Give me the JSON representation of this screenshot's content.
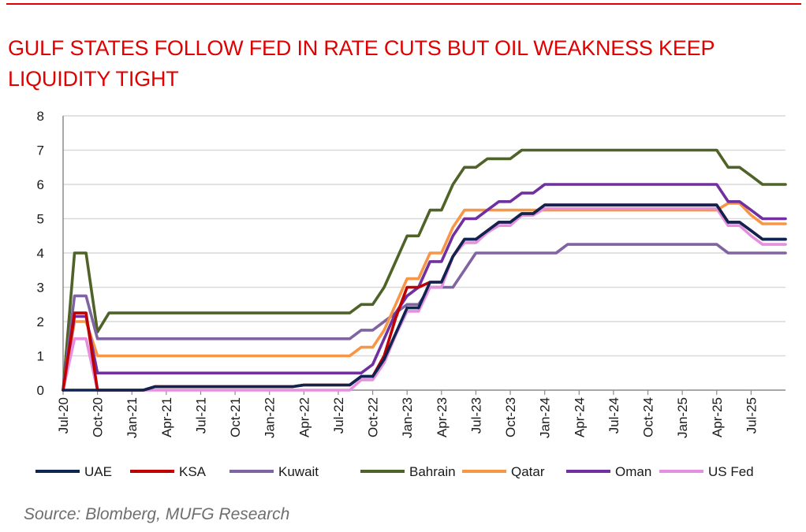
{
  "title": "GULF STATES FOLLOW FED IN RATE CUTS BUT OIL WEAKNESS KEEP LIQUIDITY TIGHT",
  "source": "Source: Blomberg, MUFG Research",
  "colors": {
    "title": "#e00000",
    "source": "#6e6e6e",
    "grid": "#d9d9d9"
  },
  "chart_data": {
    "type": "line",
    "ylim": [
      0,
      8
    ],
    "yticks": [
      0,
      1,
      2,
      3,
      4,
      5,
      6,
      7,
      8
    ],
    "x_start": "2020-07",
    "x_tick_labels": [
      "Jul-20",
      "Oct-20",
      "Jan-21",
      "Apr-21",
      "Jul-21",
      "Oct-21",
      "Jan-22",
      "Apr-22",
      "Jul-22",
      "Oct-22",
      "Jan-23",
      "Apr-23",
      "Jul-23",
      "Oct-23",
      "Jan-24",
      "Apr-24",
      "Jul-24",
      "Oct-24",
      "Jan-25",
      "Apr-25",
      "Jul-25"
    ],
    "grid": "horizontal",
    "legend": "bottom",
    "series": [
      {
        "name": "Bahrain",
        "color": "#4f6228",
        "values": [
          0,
          4,
          4,
          1.7,
          2.25,
          2.25,
          2.25,
          2.25,
          2.25,
          2.25,
          2.25,
          2.25,
          2.25,
          2.25,
          2.25,
          2.25,
          2.25,
          2.25,
          2.25,
          2.25,
          2.25,
          2.25,
          2.25,
          2.25,
          2.25,
          2.25,
          2.5,
          2.5,
          3.0,
          3.75,
          4.5,
          4.5,
          5.25,
          5.25,
          6.0,
          6.5,
          6.5,
          6.75,
          6.75,
          6.75,
          7.0,
          7.0,
          7.0,
          7.0,
          7.0,
          7.0,
          7.0,
          7.0,
          7.0,
          7.0,
          7.0,
          7.0,
          7.0,
          7.0,
          7.0,
          7.0,
          7.0,
          7.0,
          6.5,
          6.5,
          6.25,
          6.0,
          6.0,
          6.0
        ]
      },
      {
        "name": "Kuwait",
        "color": "#8064a2",
        "values": [
          0,
          2.75,
          2.75,
          1.5,
          1.5,
          1.5,
          1.5,
          1.5,
          1.5,
          1.5,
          1.5,
          1.5,
          1.5,
          1.5,
          1.5,
          1.5,
          1.5,
          1.5,
          1.5,
          1.5,
          1.5,
          1.5,
          1.5,
          1.5,
          1.5,
          1.5,
          1.75,
          1.75,
          2.0,
          2.25,
          2.5,
          2.5,
          3.0,
          3.0,
          3.0,
          3.5,
          4.0,
          4.0,
          4.0,
          4.0,
          4.0,
          4.0,
          4.0,
          4.0,
          4.25,
          4.25,
          4.25,
          4.25,
          4.25,
          4.25,
          4.25,
          4.25,
          4.25,
          4.25,
          4.25,
          4.25,
          4.25,
          4.25,
          4.0,
          4.0,
          4.0,
          4.0,
          4.0,
          4.0
        ]
      },
      {
        "name": "Qatar",
        "color": "#f79646",
        "values": [
          0,
          2.0,
          2.0,
          1.0,
          1.0,
          1.0,
          1.0,
          1.0,
          1.0,
          1.0,
          1.0,
          1.0,
          1.0,
          1.0,
          1.0,
          1.0,
          1.0,
          1.0,
          1.0,
          1.0,
          1.0,
          1.0,
          1.0,
          1.0,
          1.0,
          1.0,
          1.25,
          1.25,
          1.75,
          2.5,
          3.25,
          3.25,
          4.0,
          4.0,
          4.75,
          5.25,
          5.25,
          5.25,
          5.25,
          5.25,
          5.25,
          5.25,
          5.25,
          5.25,
          5.25,
          5.25,
          5.25,
          5.25,
          5.25,
          5.25,
          5.25,
          5.25,
          5.25,
          5.25,
          5.25,
          5.25,
          5.25,
          5.25,
          5.45,
          5.45,
          5.1,
          4.85,
          4.85,
          4.85
        ]
      },
      {
        "name": "Oman",
        "color": "#7030a0",
        "values": [
          0,
          2.15,
          2.15,
          0.5,
          0.5,
          0.5,
          0.5,
          0.5,
          0.5,
          0.5,
          0.5,
          0.5,
          0.5,
          0.5,
          0.5,
          0.5,
          0.5,
          0.5,
          0.5,
          0.5,
          0.5,
          0.5,
          0.5,
          0.5,
          0.5,
          0.5,
          0.5,
          0.75,
          1.5,
          2.25,
          2.75,
          3.0,
          3.75,
          3.75,
          4.5,
          5.0,
          5.0,
          5.25,
          5.5,
          5.5,
          5.75,
          5.75,
          6.0,
          6.0,
          6.0,
          6.0,
          6.0,
          6.0,
          6.0,
          6.0,
          6.0,
          6.0,
          6.0,
          6.0,
          6.0,
          6.0,
          6.0,
          6.0,
          5.5,
          5.5,
          5.25,
          5.0,
          5.0,
          5.0
        ]
      },
      {
        "name": "US Fed",
        "color": "#e58fe0",
        "values": [
          0,
          1.5,
          1.5,
          0,
          0,
          0,
          0,
          0,
          0,
          0,
          0,
          0,
          0,
          0,
          0,
          0,
          0,
          0,
          0,
          0,
          0,
          0,
          0,
          0,
          0,
          0,
          0.3,
          0.3,
          0.8,
          1.6,
          2.3,
          2.3,
          3.0,
          3.0,
          3.9,
          4.3,
          4.3,
          4.6,
          4.8,
          4.8,
          5.1,
          5.1,
          5.3,
          5.3,
          5.3,
          5.3,
          5.3,
          5.3,
          5.3,
          5.3,
          5.3,
          5.3,
          5.3,
          5.3,
          5.3,
          5.3,
          5.3,
          5.3,
          4.8,
          4.8,
          4.5,
          4.25,
          4.25,
          4.25
        ]
      },
      {
        "name": "KSA",
        "color": "#c00000",
        "values": [
          0,
          2.25,
          2.25,
          0,
          0,
          0,
          0,
          0,
          0.1,
          0.1,
          0.1,
          0.1,
          0.1,
          0.1,
          0.1,
          0.1,
          0.1,
          0.1,
          0.1,
          0.1,
          0.1,
          0.15,
          0.15,
          0.15,
          0.15,
          0.15,
          0.4,
          0.4,
          1.0,
          2.1,
          3.0,
          3.0,
          3.15,
          3.15,
          3.9,
          4.4,
          4.4,
          4.65,
          4.9,
          4.9,
          5.15,
          5.15,
          5.4,
          5.4,
          5.4,
          5.4,
          5.4,
          5.4,
          5.4,
          5.4,
          5.4,
          5.4,
          5.4,
          5.4,
          5.4,
          5.4,
          5.4,
          5.4,
          4.9,
          4.9,
          4.65,
          4.4,
          4.4,
          4.4
        ]
      },
      {
        "name": "UAE",
        "color": "#0f2450",
        "values": [
          0,
          0,
          0,
          0,
          0,
          0,
          0,
          0,
          0.1,
          0.1,
          0.1,
          0.1,
          0.1,
          0.1,
          0.1,
          0.1,
          0.1,
          0.1,
          0.1,
          0.1,
          0.1,
          0.15,
          0.15,
          0.15,
          0.15,
          0.15,
          0.4,
          0.4,
          0.9,
          1.65,
          2.4,
          2.4,
          3.15,
          3.15,
          3.9,
          4.4,
          4.4,
          4.65,
          4.9,
          4.9,
          5.15,
          5.15,
          5.4,
          5.4,
          5.4,
          5.4,
          5.4,
          5.4,
          5.4,
          5.4,
          5.4,
          5.4,
          5.4,
          5.4,
          5.4,
          5.4,
          5.4,
          5.4,
          4.9,
          4.9,
          4.65,
          4.4,
          4.4,
          4.4
        ]
      }
    ],
    "legend_order": [
      "UAE",
      "KSA",
      "Kuwait",
      "Bahrain",
      "Qatar",
      "Oman",
      "US Fed"
    ]
  }
}
